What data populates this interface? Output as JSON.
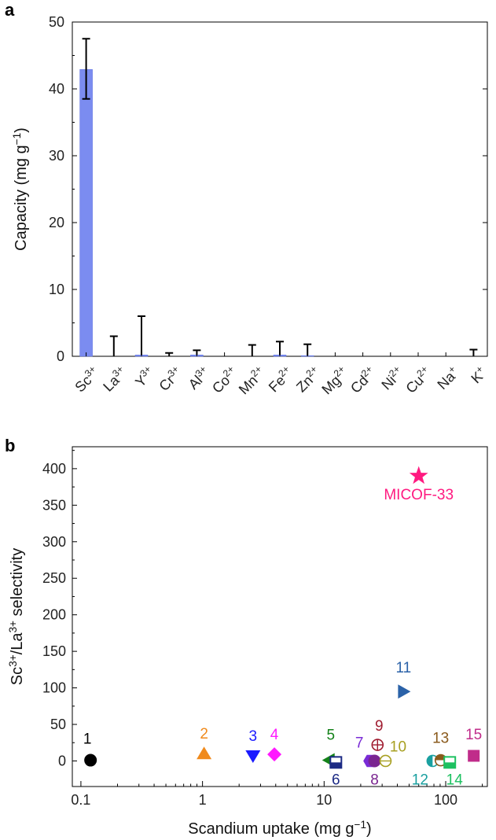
{
  "chart_data": [
    {
      "panel": "a",
      "type": "bar",
      "ylabel_main": "Capacity (mg g",
      "ylabel_sup": "−1",
      "ylabel_end": ")",
      "ylim": [
        0,
        50
      ],
      "yticks": [
        "0",
        "10",
        "20",
        "30",
        "40",
        "50"
      ],
      "bar_color": "#7b8cf0",
      "categories": [
        {
          "base": "Sc",
          "sup": "3+"
        },
        {
          "base": "La",
          "sup": "3+"
        },
        {
          "base": "Y",
          "sup": "3+"
        },
        {
          "base": "Cr",
          "sup": "3+"
        },
        {
          "base": "Al",
          "sup": "3+"
        },
        {
          "base": "Co",
          "sup": "2+"
        },
        {
          "base": "Mn",
          "sup": "2+"
        },
        {
          "base": "Fe",
          "sup": "2+"
        },
        {
          "base": "Zn",
          "sup": "2+"
        },
        {
          "base": "Mg",
          "sup": "2+"
        },
        {
          "base": "Cd",
          "sup": "2+"
        },
        {
          "base": "Ni",
          "sup": "2+"
        },
        {
          "base": "Cu",
          "sup": "2+"
        },
        {
          "base": "Na",
          "sup": "+"
        },
        {
          "base": "K",
          "sup": "+"
        }
      ],
      "values": [
        42.9,
        0.0,
        0.2,
        0.0,
        0.2,
        0.0,
        0.0,
        0.2,
        0.1,
        0.0,
        0.0,
        0.0,
        0.0,
        0.0,
        0.0
      ],
      "error_upper": [
        47.5,
        3.0,
        6.0,
        0.5,
        0.9,
        null,
        1.7,
        2.2,
        1.8,
        null,
        null,
        null,
        null,
        null,
        1.0
      ],
      "error_lower": [
        38.5,
        null,
        null,
        null,
        null,
        null,
        null,
        null,
        null,
        null,
        null,
        null,
        null,
        null,
        null
      ]
    },
    {
      "panel": "b",
      "type": "scatter",
      "xlabel": "Scandium uptake (mg g",
      "xlabel_sup": "−1",
      "xlabel_end": ")",
      "ylabel_a": "Sc",
      "ylabel_a_sup": "3+",
      "ylabel_b": "/La",
      "ylabel_b_sup": "3+",
      "ylabel_c": " selectivity",
      "xscale": "log",
      "xlim": [
        0.085,
        220
      ],
      "ylim": [
        -35,
        430
      ],
      "xticks": [
        {
          "value": 0.1,
          "label": "0.1"
        },
        {
          "value": 1,
          "label": "1"
        },
        {
          "value": 10,
          "label": "10"
        },
        {
          "value": 100,
          "label": "100"
        }
      ],
      "yticks": [
        "0",
        "50",
        "100",
        "150",
        "200",
        "250",
        "300",
        "350",
        "400"
      ],
      "points": [
        {
          "label": "1",
          "x": 0.12,
          "y": 1,
          "marker": "circle",
          "color": "#000000"
        },
        {
          "label": "2",
          "x": 1.03,
          "y": 10,
          "marker": "triangle-up",
          "color": "#f08a1c"
        },
        {
          "label": "3",
          "x": 2.6,
          "y": 7,
          "marker": "triangle-down",
          "color": "#1a1aff"
        },
        {
          "label": "4",
          "x": 3.9,
          "y": 9,
          "marker": "diamond",
          "color": "#ff19ff"
        },
        {
          "label": "5",
          "x": 11.0,
          "y": 1,
          "marker": "triangle-left",
          "color": "#14821a"
        },
        {
          "label": "6",
          "x": 12.5,
          "y": -2,
          "marker": "square-half",
          "color": "#1c2a85"
        },
        {
          "label": "7",
          "x": 24.0,
          "y": 0,
          "marker": "hexagon",
          "color": "#7a2bd6"
        },
        {
          "label": "8",
          "x": 26.0,
          "y": 0,
          "marker": "circle",
          "color": "#7a2590"
        },
        {
          "label": "9",
          "x": 27.5,
          "y": 22,
          "marker": "circle-plus",
          "color": "#a01c30"
        },
        {
          "label": "10",
          "x": 32.0,
          "y": 0,
          "marker": "circle-minus",
          "color": "#a8a022"
        },
        {
          "label": "11",
          "x": 45.0,
          "y": 95,
          "marker": "triangle-right",
          "color": "#2b62a8"
        },
        {
          "label": "12",
          "x": 78.0,
          "y": 0,
          "marker": "circle-half",
          "color": "#1aa0a0"
        },
        {
          "label": "13",
          "x": 91.0,
          "y": 1,
          "marker": "circle-half-top",
          "color": "#8a5a1c"
        },
        {
          "label": "14",
          "x": 108.0,
          "y": -2,
          "marker": "square-half",
          "color": "#1cc060"
        },
        {
          "label": "15",
          "x": 170.0,
          "y": 7,
          "marker": "square",
          "color": "#c02c8a"
        },
        {
          "label": "MICOF-33",
          "x": 60.0,
          "y": 390,
          "marker": "star",
          "color": "#ff1a80"
        }
      ]
    }
  ],
  "panel_labels": {
    "a": "a",
    "b": "b"
  }
}
